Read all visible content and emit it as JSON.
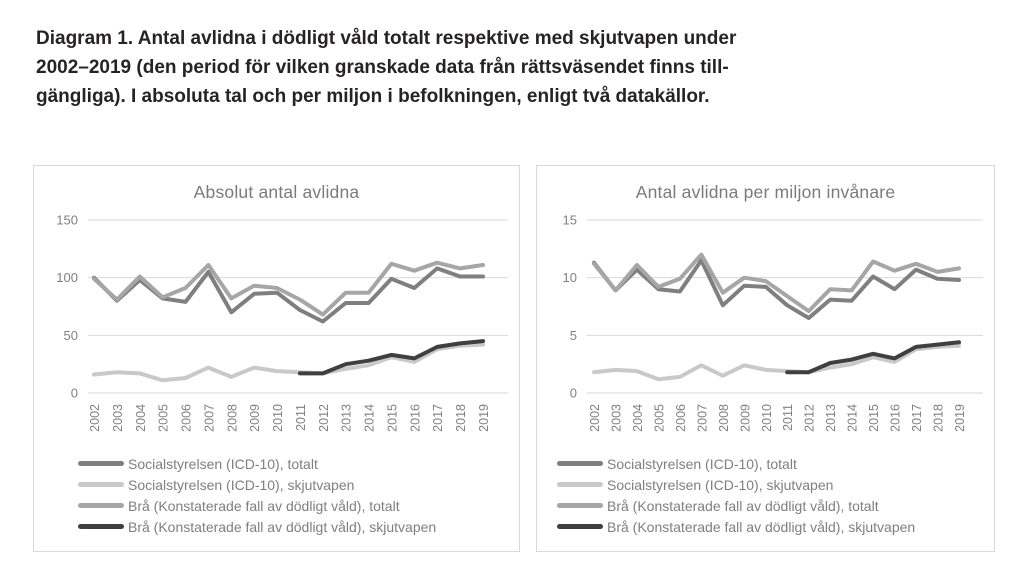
{
  "page_title_lines": [
    "Diagram 1. Antal avlidna i dödligt våld totalt respektive med skjutvapen under",
    "2002–2019 (den period för vilken granskade data från rättsväsendet finns till-",
    "gängliga). I absoluta tal och per miljon i befolkningen, enligt två datakällor."
  ],
  "colors": {
    "soc_totalt": "#7f7f7f",
    "soc_skjutvapen": "#c9c9c9",
    "bra_totalt": "#a6a6a6",
    "bra_skjutvapen": "#3f3f3f",
    "gridline": "#d9d9d9",
    "axis_text": "#808080",
    "panel_border": "#d9d9d9",
    "doc_title_text": "#262324",
    "chart_title_text": "#7b7b7b"
  },
  "chart_data": [
    {
      "type": "line",
      "title": "Absolut antal avlidna",
      "xlabel": "",
      "ylabel": "",
      "x": [
        2002,
        2003,
        2004,
        2005,
        2006,
        2007,
        2008,
        2009,
        2010,
        2011,
        2012,
        2013,
        2014,
        2015,
        2016,
        2017,
        2018,
        2019
      ],
      "ylim": [
        0,
        150
      ],
      "yticks": [
        0,
        50,
        100,
        150
      ],
      "grid": true,
      "legend_position": "bottom",
      "series": [
        {
          "name": "Socialstyrelsen (ICD-10), totalt",
          "color_key": "soc_totalt",
          "values": [
            100,
            80,
            98,
            82,
            79,
            105,
            70,
            86,
            87,
            72,
            62,
            78,
            78,
            99,
            91,
            108,
            101,
            101
          ]
        },
        {
          "name": "Socialstyrelsen (ICD-10), skjutvapen",
          "color_key": "soc_skjutvapen",
          "values": [
            16,
            18,
            17,
            11,
            13,
            22,
            14,
            22,
            19,
            18,
            17,
            21,
            24,
            31,
            27,
            38,
            41,
            42
          ]
        },
        {
          "name": "Brå (Konstaterade fall av dödligt våld), totalt",
          "color_key": "bra_totalt",
          "values": [
            99,
            81,
            101,
            83,
            91,
            111,
            82,
            93,
            91,
            81,
            68,
            87,
            87,
            112,
            106,
            113,
            108,
            111
          ]
        },
        {
          "name": "Brå (Konstaterade fall av dödligt våld), skjutvapen",
          "color_key": "bra_skjutvapen",
          "values": [
            null,
            null,
            null,
            null,
            null,
            null,
            null,
            null,
            null,
            17,
            17,
            25,
            28,
            33,
            30,
            40,
            43,
            45
          ]
        }
      ]
    },
    {
      "type": "line",
      "title": "Antal avlidna per miljon invånare",
      "xlabel": "",
      "ylabel": "",
      "x": [
        2002,
        2003,
        2004,
        2005,
        2006,
        2007,
        2008,
        2009,
        2010,
        2011,
        2012,
        2013,
        2014,
        2015,
        2016,
        2017,
        2018,
        2019
      ],
      "ylim": [
        0,
        15
      ],
      "yticks": [
        0,
        5,
        10,
        15
      ],
      "grid": true,
      "legend_position": "bottom",
      "series": [
        {
          "name": "Socialstyrelsen (ICD-10), totalt",
          "color_key": "soc_totalt",
          "values": [
            11.3,
            8.9,
            10.7,
            9.0,
            8.8,
            11.5,
            7.6,
            9.3,
            9.2,
            7.6,
            6.5,
            8.1,
            8.0,
            10.1,
            9.0,
            10.7,
            9.9,
            9.8
          ]
        },
        {
          "name": "Socialstyrelsen (ICD-10), skjutvapen",
          "color_key": "soc_skjutvapen",
          "values": [
            1.8,
            2.0,
            1.9,
            1.2,
            1.4,
            2.4,
            1.5,
            2.4,
            2.0,
            1.9,
            1.8,
            2.2,
            2.5,
            3.1,
            2.7,
            3.8,
            4.0,
            4.1
          ]
        },
        {
          "name": "Brå (Konstaterade fall av dödligt våld), totalt",
          "color_key": "bra_totalt",
          "values": [
            11.2,
            8.9,
            11.1,
            9.2,
            9.9,
            12.0,
            8.7,
            10.0,
            9.7,
            8.4,
            7.1,
            9.0,
            8.9,
            11.4,
            10.6,
            11.2,
            10.5,
            10.8
          ]
        },
        {
          "name": "Brå (Konstaterade fall av dödligt våld), skjutvapen",
          "color_key": "bra_skjutvapen",
          "values": [
            null,
            null,
            null,
            null,
            null,
            null,
            null,
            null,
            null,
            1.8,
            1.8,
            2.6,
            2.9,
            3.4,
            3.0,
            4.0,
            4.2,
            4.4
          ]
        }
      ]
    }
  ]
}
